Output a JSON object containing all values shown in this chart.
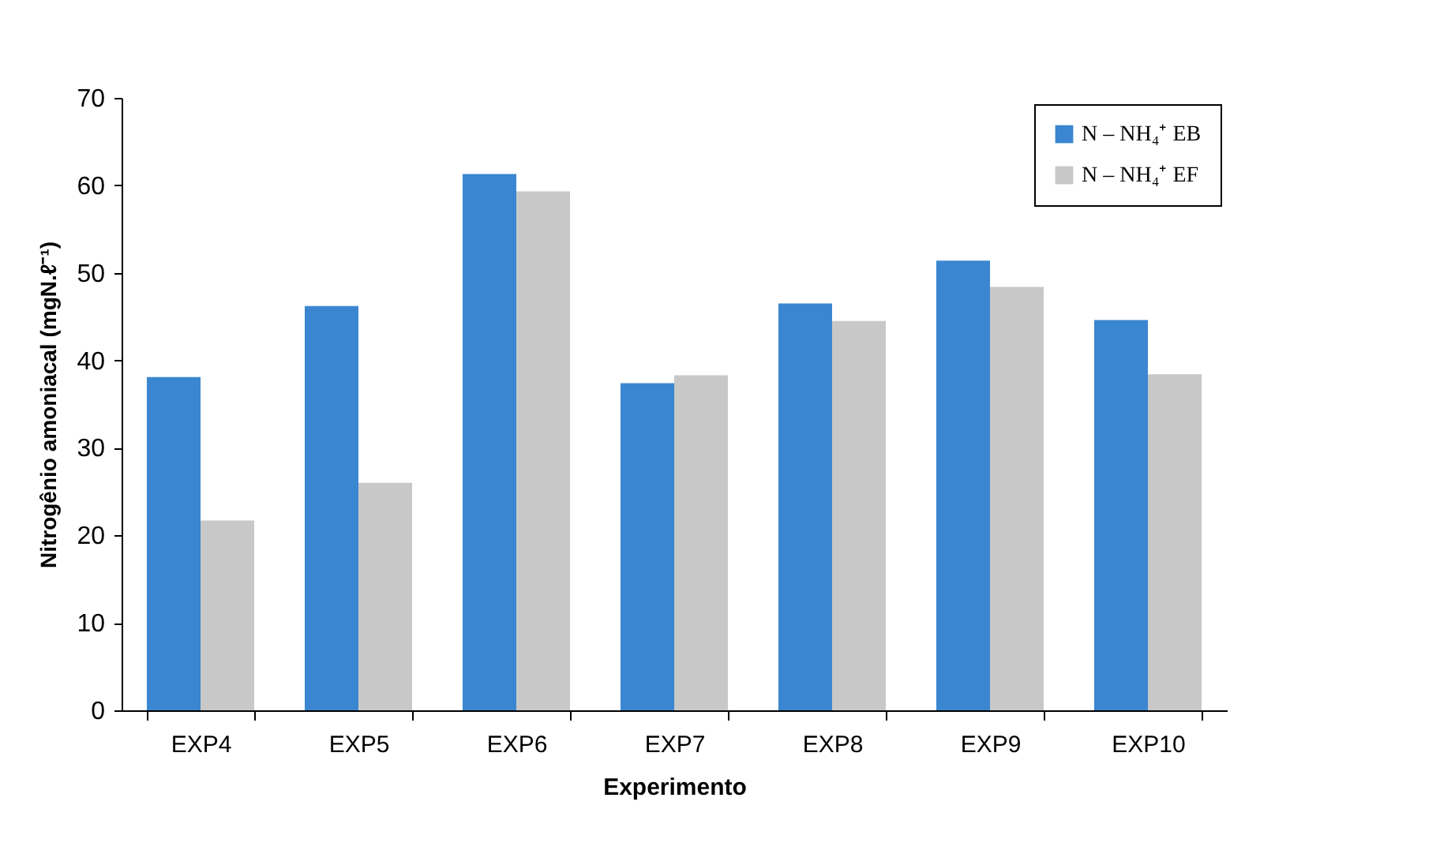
{
  "chart_data": {
    "type": "bar",
    "xlabel": "Experimento",
    "ylabel": "Nitrogênio amoniacal (mgN.ℓ⁻¹)",
    "categories": [
      "EXP4",
      "EXP5",
      "EXP6",
      "EXP7",
      "EXP8",
      "EXP9",
      "EXP10"
    ],
    "series": [
      {
        "name": "N – NH₄⁺ EB",
        "color": "#3a86d0",
        "values": [
          38.1,
          46.2,
          61.3,
          37.4,
          46.5,
          51.4,
          44.6
        ]
      },
      {
        "name": "N – NH₄⁺ EF",
        "color": "#c8c8c8",
        "values": [
          21.7,
          26.0,
          59.3,
          38.3,
          44.5,
          48.4,
          38.4
        ]
      }
    ],
    "ylim": [
      0,
      70
    ],
    "yticks": [
      0,
      10,
      20,
      30,
      40,
      50,
      60,
      70
    ],
    "grid": false,
    "legend": "top right"
  }
}
